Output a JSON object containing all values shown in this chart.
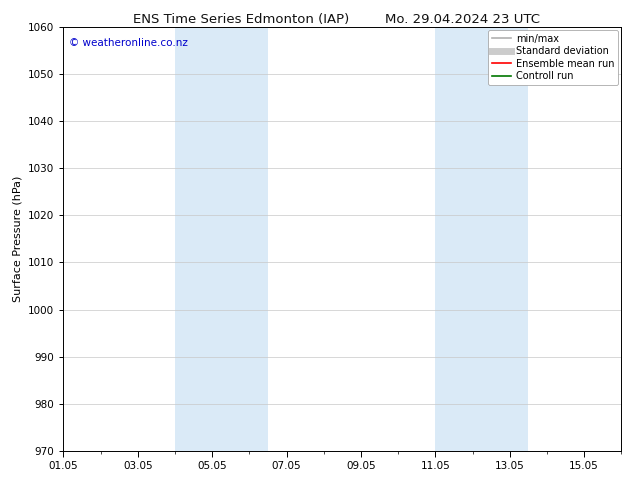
{
  "title1": "ENS Time Series Edmonton (IAP)",
  "title2": "Mo. 29.04.2024 23 UTC",
  "ylabel": "Surface Pressure (hPa)",
  "ylim": [
    970,
    1060
  ],
  "yticks": [
    970,
    980,
    990,
    1000,
    1010,
    1020,
    1030,
    1040,
    1050,
    1060
  ],
  "xlim": [
    0,
    15
  ],
  "xtick_labels": [
    "01.05",
    "03.05",
    "05.05",
    "07.05",
    "09.05",
    "11.05",
    "13.05",
    "15.05"
  ],
  "xtick_positions": [
    0,
    2,
    4,
    6,
    8,
    10,
    12,
    14
  ],
  "shade_bands": [
    {
      "start": 3.0,
      "end": 4.0
    },
    {
      "start": 4.0,
      "end": 5.5
    },
    {
      "start": 10.0,
      "end": 11.0
    },
    {
      "start": 11.0,
      "end": 12.5
    }
  ],
  "shade_color": "#daeaf7",
  "background_color": "#ffffff",
  "plot_bg_color": "#ffffff",
  "watermark": "© weatheronline.co.nz",
  "watermark_color": "#0000cc",
  "legend_items": [
    {
      "label": "min/max",
      "color": "#b0b0b0",
      "lw": 1.2
    },
    {
      "label": "Standard deviation",
      "color": "#cccccc",
      "lw": 5
    },
    {
      "label": "Ensemble mean run",
      "color": "#ff0000",
      "lw": 1.2
    },
    {
      "label": "Controll run",
      "color": "#007700",
      "lw": 1.2
    }
  ],
  "grid_color": "#c8c8c8",
  "border_color": "#000000",
  "font_size_title": 9.5,
  "font_size_axis": 8,
  "font_size_ticks": 7.5,
  "font_size_legend": 7,
  "font_size_watermark": 7.5
}
